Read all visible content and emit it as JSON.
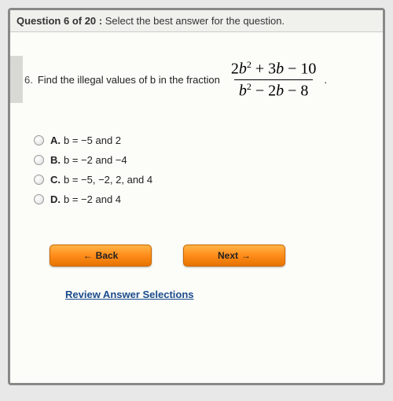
{
  "header": {
    "position_prefix": "Question",
    "current": 6,
    "total": 20,
    "instruction": "Select the best answer for the question."
  },
  "question": {
    "index": "6.",
    "stem": "Find the illegal values of b in the fraction",
    "fraction": {
      "numerator_html": "2<i>b</i><sup>2</sup> + 3<i>b</i> − 10",
      "denominator_html": "<i>b</i><sup>2</sup> − 2<i>b</i> − 8"
    }
  },
  "options": [
    {
      "letter": "A.",
      "text": "b = −5 and 2"
    },
    {
      "letter": "B.",
      "text": "b = −2 and −4"
    },
    {
      "letter": "C.",
      "text": "b = −5, −2, 2, and 4"
    },
    {
      "letter": "D.",
      "text": "b = −2 and 4"
    }
  ],
  "buttons": {
    "back": "Back",
    "next": "Next"
  },
  "review_link": "Review Answer Selections",
  "colors": {
    "button_gradient_top": "#ffb347",
    "button_gradient_mid": "#ff8c1a",
    "button_gradient_bottom": "#e67300",
    "link_color": "#1a4b8c",
    "background": "#fcfcf8",
    "frame_border": "#888888"
  }
}
